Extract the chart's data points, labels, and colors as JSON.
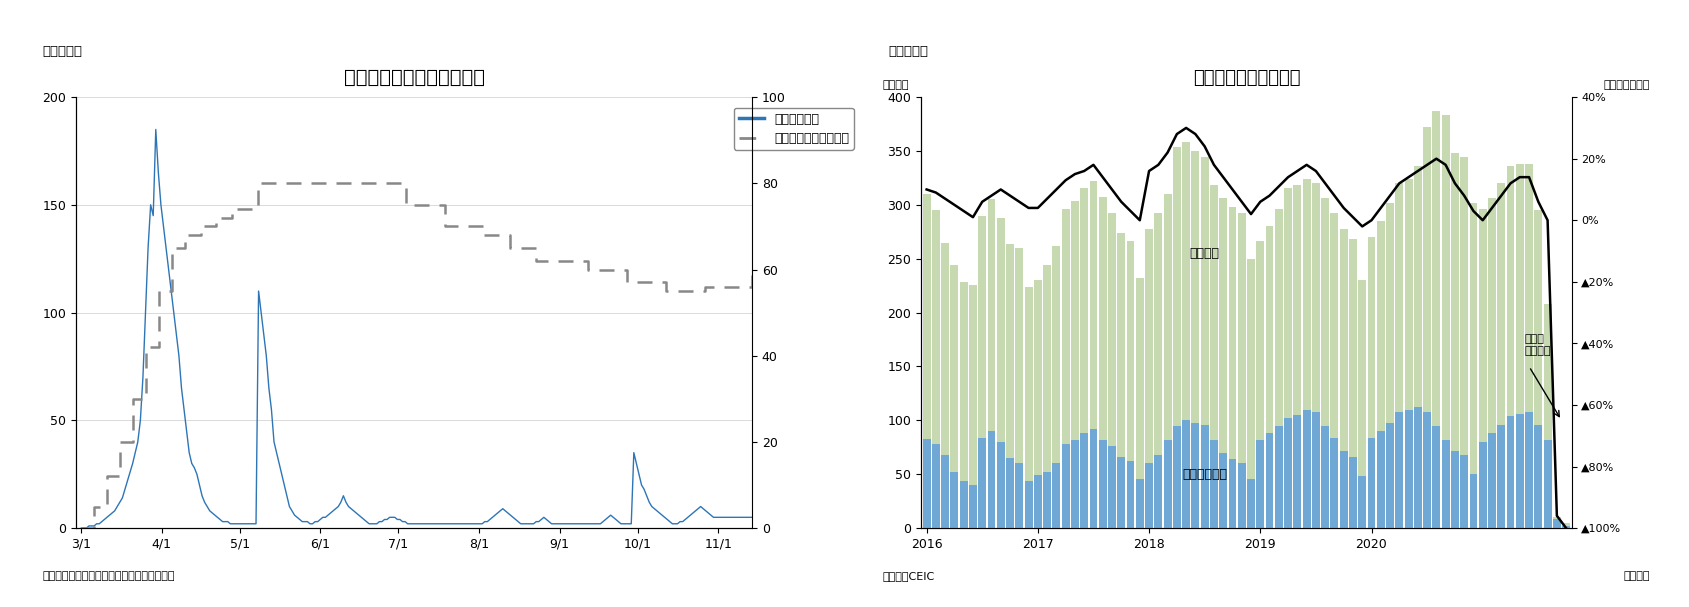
{
  "fig3": {
    "title": "タイの新規感染者数の推移",
    "label_top": "（図表３）",
    "source": "（資料）タイ保健省、オックスフォード大学",
    "legend_cases": "新規感染者数",
    "legend_strict": "厳格度指数（右目盛）",
    "ylim_left": [
      0,
      200
    ],
    "ylim_right": [
      0,
      100
    ],
    "yticks_left": [
      0,
      50,
      100,
      150,
      200
    ],
    "yticks_right": [
      0,
      20,
      40,
      60,
      80,
      100
    ],
    "xtick_labels": [
      "3/1",
      "4/1",
      "5/1",
      "6/1",
      "7/1",
      "8/1",
      "9/1",
      "10/1",
      "11/1"
    ],
    "xtick_days": [
      0,
      31,
      61,
      92,
      122,
      153,
      184,
      214,
      245
    ],
    "x_max": 258,
    "line_color": "#2E75B6",
    "strictness_color": "#888888",
    "new_cases": [
      0,
      0,
      0,
      1,
      1,
      1,
      2,
      2,
      3,
      4,
      5,
      6,
      7,
      8,
      10,
      12,
      14,
      18,
      22,
      26,
      30,
      35,
      40,
      50,
      70,
      100,
      130,
      150,
      145,
      185,
      165,
      150,
      140,
      130,
      120,
      110,
      100,
      90,
      80,
      65,
      55,
      45,
      35,
      30,
      28,
      25,
      20,
      15,
      12,
      10,
      8,
      7,
      6,
      5,
      4,
      3,
      3,
      3,
      2,
      2,
      2,
      2,
      2,
      2,
      2,
      2,
      2,
      2,
      2,
      110,
      100,
      90,
      80,
      65,
      55,
      40,
      35,
      30,
      25,
      20,
      15,
      10,
      8,
      6,
      5,
      4,
      3,
      3,
      3,
      2,
      2,
      3,
      3,
      4,
      5,
      5,
      6,
      7,
      8,
      9,
      10,
      12,
      15,
      12,
      10,
      9,
      8,
      7,
      6,
      5,
      4,
      3,
      2,
      2,
      2,
      2,
      3,
      3,
      4,
      4,
      5,
      5,
      5,
      4,
      4,
      3,
      3,
      2,
      2,
      2,
      2,
      2,
      2,
      2,
      2,
      2,
      2,
      2,
      2,
      2,
      2,
      2,
      2,
      2,
      2,
      2,
      2,
      2,
      2,
      2,
      2,
      2,
      2,
      2,
      2,
      2,
      2,
      3,
      3,
      4,
      5,
      6,
      7,
      8,
      9,
      8,
      7,
      6,
      5,
      4,
      3,
      2,
      2,
      2,
      2,
      2,
      2,
      3,
      3,
      4,
      5,
      4,
      3,
      2,
      2,
      2,
      2,
      2,
      2,
      2,
      2,
      2,
      2,
      2,
      2,
      2,
      2,
      2,
      2,
      2,
      2,
      2,
      2,
      3,
      4,
      5,
      6,
      5,
      4,
      3,
      2,
      2,
      2,
      2,
      2,
      35,
      30,
      25,
      20,
      18,
      15,
      12,
      10,
      9,
      8,
      7,
      6,
      5,
      4,
      3,
      2,
      2,
      2,
      3,
      3,
      4,
      5,
      6,
      7,
      8,
      9,
      10,
      9,
      8,
      7,
      6,
      5,
      5,
      5,
      5,
      5,
      5,
      5,
      5,
      5,
      5,
      5,
      5,
      5,
      5,
      5,
      5
    ],
    "strictness_x": [
      0,
      5,
      10,
      15,
      20,
      25,
      30,
      35,
      40,
      46,
      52,
      58,
      68,
      78,
      88,
      100,
      113,
      125,
      140,
      155,
      165,
      175,
      185,
      195,
      210,
      225,
      240,
      258
    ],
    "strictness_y": [
      0,
      5,
      12,
      20,
      30,
      42,
      55,
      65,
      68,
      70,
      72,
      74,
      80,
      80,
      80,
      80,
      80,
      75,
      70,
      68,
      65,
      62,
      62,
      60,
      57,
      55,
      56,
      60
    ]
  },
  "fig4": {
    "title": "タイの外国人観光客数",
    "label_top": "（図表４）",
    "label_y_left": "（万人）",
    "label_y_right": "（前年同月比）",
    "label_x": "（月次）",
    "source": "（資料）CEIC",
    "annotation_visitors": "訪問者数",
    "annotation_china": "（うち中国）",
    "annotation_growth": "伸び率\n（右軸）",
    "ylim_left": [
      0,
      400
    ],
    "ylim_right": [
      -1.0,
      0.4
    ],
    "yticks_left": [
      0,
      50,
      100,
      150,
      200,
      250,
      300,
      350,
      400
    ],
    "yticks_right": [
      0.4,
      0.2,
      0.0,
      -0.2,
      -0.4,
      -0.6,
      -0.8,
      -1.0
    ],
    "ytick_labels_right": [
      "40%",
      "20%",
      "0%",
      "▲20%",
      "▲40%",
      "▲60%",
      "▲80%",
      "▲100%"
    ],
    "bar_color_total": "#C6D9B0",
    "bar_color_china": "#6FA8D4",
    "line_color": "#000000",
    "months_total": [
      310,
      295,
      265,
      244,
      228,
      226,
      290,
      305,
      288,
      264,
      260,
      224,
      230,
      244,
      262,
      296,
      304,
      316,
      322,
      307,
      292,
      274,
      266,
      232,
      278,
      292,
      310,
      354,
      358,
      350,
      344,
      318,
      306,
      298,
      292,
      250,
      266,
      280,
      296,
      316,
      318,
      324,
      320,
      306,
      292,
      278,
      268,
      230,
      270,
      285,
      302,
      320,
      324,
      336,
      372,
      387,
      383,
      348,
      344,
      302,
      296,
      306,
      320,
      336,
      338,
      338,
      295,
      208,
      10,
      5
    ],
    "months_china": [
      83,
      78,
      68,
      52,
      44,
      40,
      84,
      90,
      80,
      65,
      60,
      44,
      49,
      52,
      60,
      78,
      82,
      88,
      92,
      82,
      76,
      66,
      62,
      46,
      60,
      68,
      82,
      95,
      100,
      98,
      96,
      82,
      70,
      64,
      60,
      46,
      82,
      88,
      95,
      102,
      105,
      110,
      108,
      95,
      84,
      72,
      66,
      48,
      84,
      90,
      98,
      108,
      110,
      112,
      108,
      95,
      82,
      72,
      68,
      50,
      80,
      88,
      96,
      104,
      106,
      108,
      96,
      82,
      8,
      2
    ],
    "yoy_growth": [
      0.1,
      0.09,
      0.07,
      0.05,
      0.03,
      0.01,
      0.06,
      0.08,
      0.1,
      0.08,
      0.06,
      0.04,
      0.04,
      0.07,
      0.1,
      0.13,
      0.15,
      0.16,
      0.18,
      0.14,
      0.1,
      0.06,
      0.03,
      0.0,
      0.16,
      0.18,
      0.22,
      0.28,
      0.3,
      0.28,
      0.24,
      0.18,
      0.14,
      0.1,
      0.06,
      0.02,
      0.06,
      0.08,
      0.11,
      0.14,
      0.16,
      0.18,
      0.16,
      0.12,
      0.08,
      0.04,
      0.01,
      -0.02,
      0.0,
      0.04,
      0.08,
      0.12,
      0.14,
      0.16,
      0.18,
      0.2,
      0.18,
      0.12,
      0.08,
      0.03,
      0.0,
      0.04,
      0.08,
      0.12,
      0.14,
      0.14,
      0.06,
      0.0,
      -0.96,
      -1.0
    ]
  },
  "bg_color": "#FFFFFF"
}
